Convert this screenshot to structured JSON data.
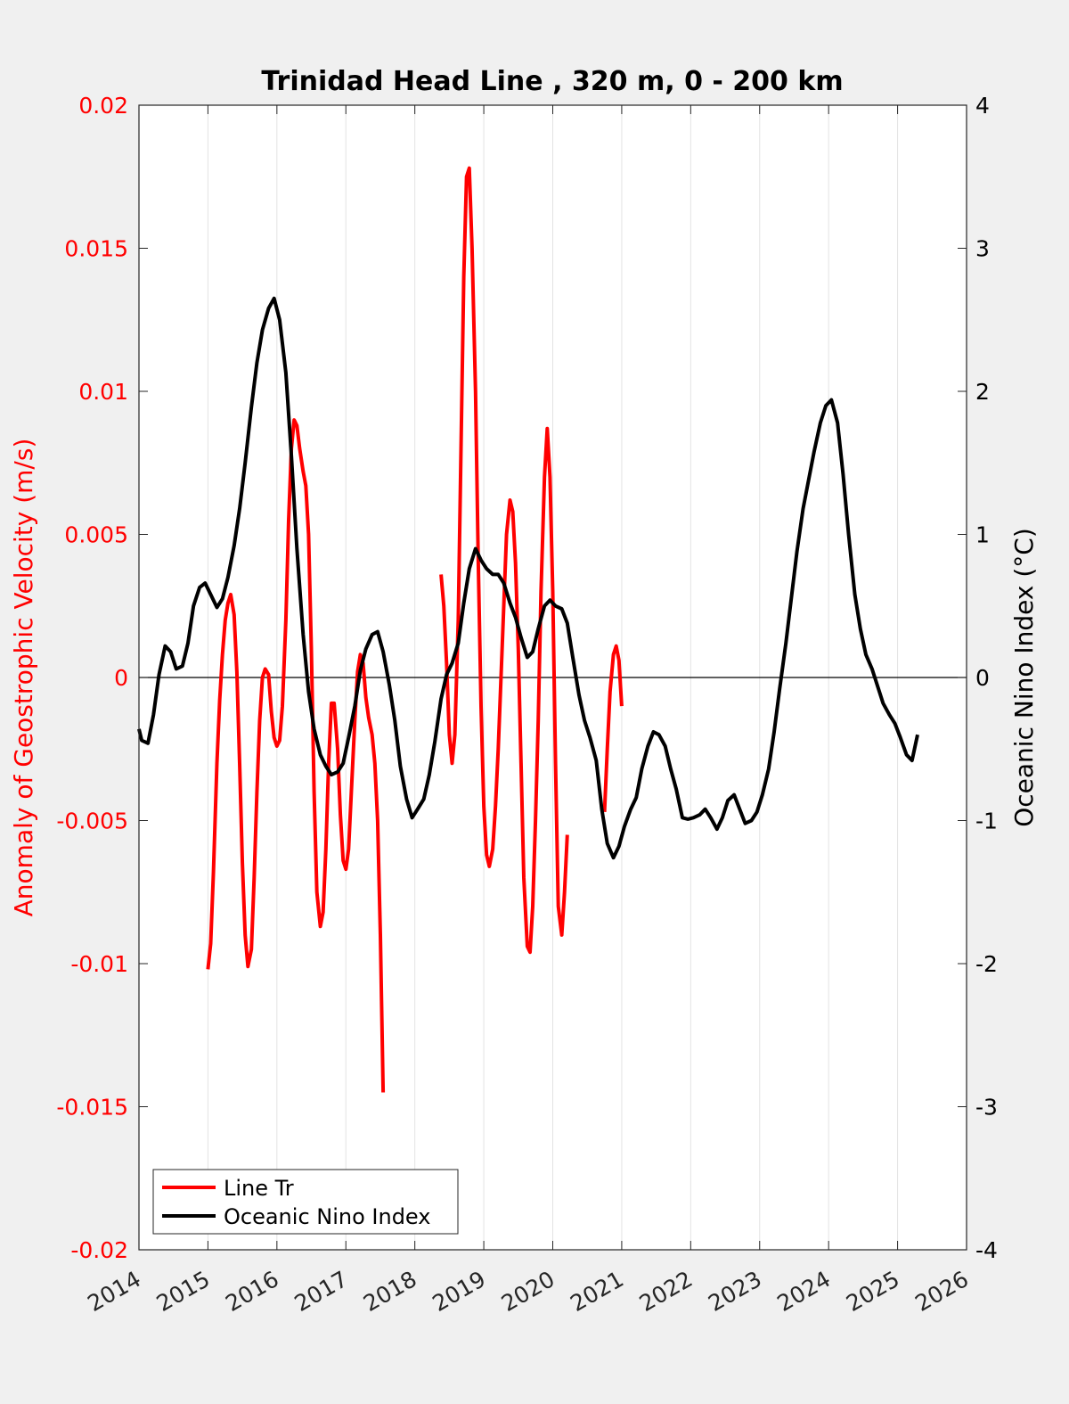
{
  "chart_data": {
    "type": "line",
    "title": "Trinidad Head Line , 320 m, 0 - 200 km",
    "xlim": [
      2014,
      2026
    ],
    "x_ticks": [
      "2014",
      "2015",
      "2016",
      "2017",
      "2018",
      "2019",
      "2020",
      "2021",
      "2022",
      "2023",
      "2024",
      "2025",
      "2026"
    ],
    "y_left": {
      "label": "Anomaly of Geostrophic Velocity (m/s)",
      "color": "#ff0000",
      "lim": [
        -0.02,
        0.02
      ],
      "ticks": [
        "-0.02",
        "-0.015",
        "-0.01",
        "-0.005",
        "0",
        "0.005",
        "0.01",
        "0.015",
        "0.02"
      ]
    },
    "y_right": {
      "label": "Oceanic Nino Index (°C)",
      "color": "#000000",
      "lim": [
        -4,
        4
      ],
      "ticks": [
        "-4",
        "-3",
        "-2",
        "-1",
        "0",
        "1",
        "2",
        "3",
        "4"
      ]
    },
    "zero_line": 0,
    "grid": "x-major",
    "legend": {
      "placement": "bottom-left",
      "entries": [
        "Line Tr",
        "Oceanic Nino Index"
      ]
    },
    "series": [
      {
        "name": "Line Tr",
        "axis": "left",
        "color": "#ff0000",
        "segments": [
          [
            [
              2015.0,
              -0.0102
            ],
            [
              2015.04,
              -0.0093
            ],
            [
              2015.08,
              -0.0068
            ],
            [
              2015.13,
              -0.003
            ],
            [
              2015.17,
              -0.0008
            ],
            [
              2015.21,
              0.0008
            ],
            [
              2015.25,
              0.002
            ],
            [
              2015.29,
              0.0026
            ],
            [
              2015.33,
              0.0029
            ],
            [
              2015.38,
              0.0022
            ],
            [
              2015.42,
              0.0002
            ],
            [
              2015.46,
              -0.003
            ],
            [
              2015.5,
              -0.0065
            ],
            [
              2015.54,
              -0.009
            ],
            [
              2015.58,
              -0.0101
            ],
            [
              2015.63,
              -0.0095
            ],
            [
              2015.67,
              -0.007
            ],
            [
              2015.71,
              -0.004
            ],
            [
              2015.75,
              -0.0015
            ],
            [
              2015.79,
              0.0
            ],
            [
              2015.83,
              0.0003
            ],
            [
              2015.88,
              0.0001
            ],
            [
              2015.92,
              -0.0012
            ],
            [
              2015.96,
              -0.0021
            ],
            [
              2016.0,
              -0.0024
            ],
            [
              2016.04,
              -0.0022
            ],
            [
              2016.08,
              -0.001
            ],
            [
              2016.13,
              0.002
            ],
            [
              2016.17,
              0.0055
            ],
            [
              2016.21,
              0.008
            ],
            [
              2016.25,
              0.009
            ],
            [
              2016.29,
              0.0088
            ],
            [
              2016.33,
              0.008
            ],
            [
              2016.38,
              0.0072
            ],
            [
              2016.42,
              0.0067
            ],
            [
              2016.46,
              0.005
            ],
            [
              2016.5,
              0.001
            ],
            [
              2016.54,
              -0.004
            ],
            [
              2016.58,
              -0.0075
            ],
            [
              2016.63,
              -0.0087
            ],
            [
              2016.67,
              -0.0082
            ],
            [
              2016.71,
              -0.006
            ],
            [
              2016.75,
              -0.003
            ],
            [
              2016.79,
              -0.0009
            ],
            [
              2016.83,
              -0.0009
            ],
            [
              2016.88,
              -0.0025
            ],
            [
              2016.92,
              -0.0048
            ],
            [
              2016.96,
              -0.0064
            ],
            [
              2017.0,
              -0.0067
            ],
            [
              2017.04,
              -0.006
            ],
            [
              2017.08,
              -0.004
            ],
            [
              2017.13,
              -0.0015
            ],
            [
              2017.17,
              0.0002
            ],
            [
              2017.21,
              0.0008
            ],
            [
              2017.25,
              0.0005
            ],
            [
              2017.29,
              -0.0007
            ],
            [
              2017.33,
              -0.0014
            ],
            [
              2017.38,
              -0.002
            ],
            [
              2017.42,
              -0.003
            ],
            [
              2017.46,
              -0.005
            ],
            [
              2017.5,
              -0.009
            ],
            [
              2017.54,
              -0.0145
            ]
          ],
          [
            [
              2018.38,
              0.0036
            ],
            [
              2018.42,
              0.0025
            ],
            [
              2018.46,
              0.0005
            ],
            [
              2018.5,
              -0.002
            ],
            [
              2018.54,
              -0.003
            ],
            [
              2018.58,
              -0.002
            ],
            [
              2018.63,
              0.002
            ],
            [
              2018.67,
              0.008
            ],
            [
              2018.71,
              0.014
            ],
            [
              2018.75,
              0.0175
            ],
            [
              2018.79,
              0.0178
            ],
            [
              2018.83,
              0.015
            ],
            [
              2018.88,
              0.01
            ],
            [
              2018.92,
              0.004
            ],
            [
              2018.96,
              -0.001
            ],
            [
              2019.0,
              -0.0045
            ],
            [
              2019.04,
              -0.0062
            ],
            [
              2019.08,
              -0.0066
            ],
            [
              2019.13,
              -0.006
            ],
            [
              2019.17,
              -0.0045
            ],
            [
              2019.21,
              -0.0025
            ],
            [
              2019.25,
              0.0
            ],
            [
              2019.29,
              0.0025
            ],
            [
              2019.33,
              0.005
            ],
            [
              2019.38,
              0.0062
            ],
            [
              2019.42,
              0.0058
            ],
            [
              2019.46,
              0.004
            ],
            [
              2019.5,
              0.001
            ],
            [
              2019.54,
              -0.003
            ],
            [
              2019.58,
              -0.007
            ],
            [
              2019.63,
              -0.0094
            ],
            [
              2019.67,
              -0.0096
            ],
            [
              2019.71,
              -0.008
            ],
            [
              2019.75,
              -0.005
            ],
            [
              2019.79,
              -0.0015
            ],
            [
              2019.83,
              0.003
            ],
            [
              2019.88,
              0.007
            ],
            [
              2019.92,
              0.0087
            ],
            [
              2019.96,
              0.007
            ],
            [
              2020.0,
              0.003
            ],
            [
              2020.04,
              -0.003
            ],
            [
              2020.08,
              -0.008
            ],
            [
              2020.13,
              -0.009
            ],
            [
              2020.17,
              -0.0075
            ],
            [
              2020.21,
              -0.0055
            ]
          ],
          [
            [
              2020.75,
              -0.0047
            ],
            [
              2020.79,
              -0.0025
            ],
            [
              2020.83,
              -0.0005
            ],
            [
              2020.88,
              0.0008
            ],
            [
              2020.92,
              0.0011
            ],
            [
              2020.96,
              0.0006
            ],
            [
              2021.0,
              -0.001
            ]
          ]
        ]
      },
      {
        "name": "Oceanic Nino Index",
        "axis": "right",
        "color": "#000000",
        "segments": [
          [
            [
              2014.0,
              -0.36
            ],
            [
              2014.04,
              -0.44
            ],
            [
              2014.13,
              -0.46
            ],
            [
              2014.21,
              -0.26
            ],
            [
              2014.29,
              0.02
            ],
            [
              2014.38,
              0.22
            ],
            [
              2014.46,
              0.18
            ],
            [
              2014.54,
              0.06
            ],
            [
              2014.63,
              0.08
            ],
            [
              2014.71,
              0.24
            ],
            [
              2014.79,
              0.5
            ],
            [
              2014.88,
              0.63
            ],
            [
              2014.96,
              0.66
            ],
            [
              2015.04,
              0.58
            ],
            [
              2015.13,
              0.49
            ],
            [
              2015.21,
              0.55
            ],
            [
              2015.29,
              0.7
            ],
            [
              2015.38,
              0.92
            ],
            [
              2015.46,
              1.18
            ],
            [
              2015.54,
              1.5
            ],
            [
              2015.63,
              1.89
            ],
            [
              2015.71,
              2.2
            ],
            [
              2015.79,
              2.43
            ],
            [
              2015.88,
              2.58
            ],
            [
              2015.96,
              2.65
            ],
            [
              2016.04,
              2.5
            ],
            [
              2016.13,
              2.13
            ],
            [
              2016.21,
              1.55
            ],
            [
              2016.29,
              0.9
            ],
            [
              2016.38,
              0.3
            ],
            [
              2016.46,
              -0.1
            ],
            [
              2016.54,
              -0.36
            ],
            [
              2016.63,
              -0.54
            ],
            [
              2016.71,
              -0.62
            ],
            [
              2016.79,
              -0.68
            ],
            [
              2016.88,
              -0.66
            ],
            [
              2016.96,
              -0.6
            ],
            [
              2017.04,
              -0.42
            ],
            [
              2017.13,
              -0.2
            ],
            [
              2017.21,
              0.05
            ],
            [
              2017.29,
              0.2
            ],
            [
              2017.38,
              0.3
            ],
            [
              2017.46,
              0.32
            ],
            [
              2017.54,
              0.18
            ],
            [
              2017.63,
              -0.05
            ],
            [
              2017.71,
              -0.3
            ],
            [
              2017.79,
              -0.62
            ],
            [
              2017.88,
              -0.85
            ],
            [
              2017.96,
              -0.98
            ],
            [
              2018.04,
              -0.92
            ],
            [
              2018.13,
              -0.85
            ],
            [
              2018.21,
              -0.68
            ],
            [
              2018.29,
              -0.45
            ],
            [
              2018.38,
              -0.15
            ],
            [
              2018.46,
              0.02
            ],
            [
              2018.54,
              0.1
            ],
            [
              2018.63,
              0.24
            ],
            [
              2018.71,
              0.52
            ],
            [
              2018.79,
              0.76
            ],
            [
              2018.88,
              0.9
            ],
            [
              2018.96,
              0.82
            ],
            [
              2019.04,
              0.76
            ],
            [
              2019.13,
              0.72
            ],
            [
              2019.21,
              0.72
            ],
            [
              2019.29,
              0.66
            ],
            [
              2019.38,
              0.52
            ],
            [
              2019.46,
              0.42
            ],
            [
              2019.54,
              0.28
            ],
            [
              2019.63,
              0.14
            ],
            [
              2019.71,
              0.18
            ],
            [
              2019.79,
              0.34
            ],
            [
              2019.88,
              0.5
            ],
            [
              2019.96,
              0.54
            ],
            [
              2020.04,
              0.5
            ],
            [
              2020.13,
              0.48
            ],
            [
              2020.21,
              0.38
            ],
            [
              2020.29,
              0.14
            ],
            [
              2020.38,
              -0.12
            ],
            [
              2020.46,
              -0.3
            ],
            [
              2020.54,
              -0.42
            ],
            [
              2020.63,
              -0.58
            ],
            [
              2020.71,
              -0.92
            ],
            [
              2020.79,
              -1.16
            ],
            [
              2020.88,
              -1.26
            ],
            [
              2020.96,
              -1.18
            ],
            [
              2021.04,
              -1.04
            ],
            [
              2021.13,
              -0.92
            ],
            [
              2021.21,
              -0.84
            ],
            [
              2021.29,
              -0.64
            ],
            [
              2021.38,
              -0.48
            ],
            [
              2021.46,
              -0.38
            ],
            [
              2021.54,
              -0.4
            ],
            [
              2021.63,
              -0.48
            ],
            [
              2021.71,
              -0.64
            ],
            [
              2021.79,
              -0.78
            ],
            [
              2021.88,
              -0.98
            ],
            [
              2021.96,
              -0.99
            ],
            [
              2022.04,
              -0.98
            ],
            [
              2022.13,
              -0.96
            ],
            [
              2022.21,
              -0.92
            ],
            [
              2022.29,
              -0.98
            ],
            [
              2022.38,
              -1.06
            ],
            [
              2022.46,
              -0.98
            ],
            [
              2022.54,
              -0.86
            ],
            [
              2022.63,
              -0.82
            ],
            [
              2022.71,
              -0.92
            ],
            [
              2022.79,
              -1.02
            ],
            [
              2022.88,
              -1.0
            ],
            [
              2022.96,
              -0.94
            ],
            [
              2023.04,
              -0.82
            ],
            [
              2023.13,
              -0.64
            ],
            [
              2023.21,
              -0.38
            ],
            [
              2023.29,
              -0.08
            ],
            [
              2023.38,
              0.24
            ],
            [
              2023.46,
              0.56
            ],
            [
              2023.54,
              0.88
            ],
            [
              2023.63,
              1.18
            ],
            [
              2023.71,
              1.38
            ],
            [
              2023.79,
              1.58
            ],
            [
              2023.88,
              1.78
            ],
            [
              2023.96,
              1.9
            ],
            [
              2024.04,
              1.94
            ],
            [
              2024.13,
              1.78
            ],
            [
              2024.21,
              1.42
            ],
            [
              2024.29,
              1.0
            ],
            [
              2024.38,
              0.58
            ],
            [
              2024.46,
              0.34
            ],
            [
              2024.54,
              0.16
            ],
            [
              2024.63,
              0.06
            ],
            [
              2024.71,
              -0.06
            ],
            [
              2024.79,
              -0.18
            ],
            [
              2024.88,
              -0.26
            ],
            [
              2024.96,
              -0.32
            ],
            [
              2025.04,
              -0.42
            ],
            [
              2025.13,
              -0.54
            ],
            [
              2025.21,
              -0.58
            ],
            [
              2025.29,
              -0.4
            ]
          ]
        ]
      }
    ]
  }
}
